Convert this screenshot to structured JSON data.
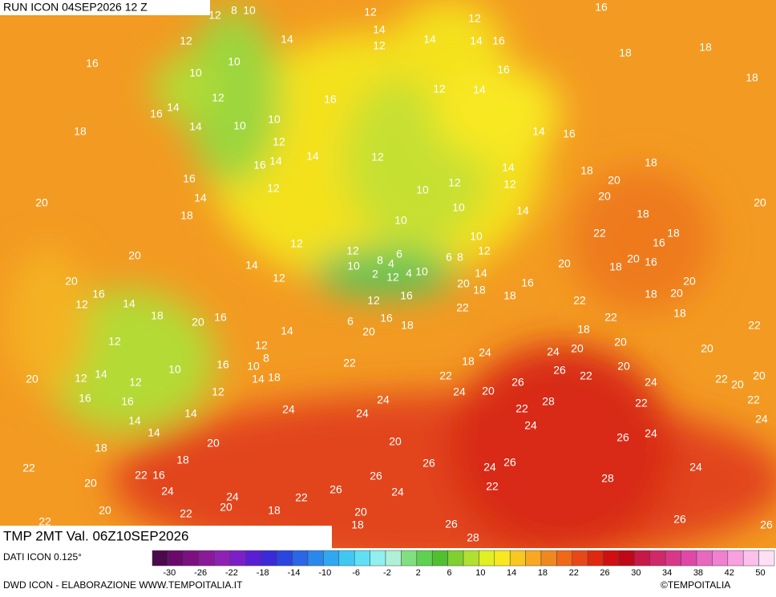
{
  "header": {
    "run": "RUN ICON 04SEP2026 12 Z",
    "field": "TMP 2MT Val. 06Z10SEP2026"
  },
  "map": {
    "labels": [
      8,
      10,
      12,
      12,
      12,
      16,
      14,
      14,
      12,
      14,
      14,
      16,
      12,
      10,
      10,
      16,
      18,
      18,
      18,
      16,
      12,
      14,
      12,
      14,
      16,
      16,
      18,
      14,
      10,
      10,
      12,
      14,
      16,
      16,
      14,
      14,
      12,
      18,
      18,
      20,
      14,
      16,
      12,
      10,
      12,
      12,
      20,
      20,
      14,
      18,
      10,
      14,
      18,
      20,
      10,
      18,
      22,
      10,
      16,
      20,
      12,
      12,
      6,
      8,
      4,
      12,
      14,
      10,
      6,
      8,
      2,
      12,
      4,
      10,
      20,
      20,
      16,
      18,
      20,
      12,
      20,
      14,
      16,
      20,
      16,
      12,
      14,
      12,
      16,
      18,
      18,
      22,
      18,
      20,
      18,
      20,
      16,
      6,
      16,
      18,
      22,
      20,
      14,
      22,
      18,
      22,
      18,
      12,
      12,
      8,
      20,
      20,
      24,
      24,
      20,
      22,
      18,
      16,
      10,
      18,
      14,
      10,
      14,
      12,
      12,
      20,
      20,
      22,
      26,
      22,
      26,
      24,
      22,
      20,
      20,
      24,
      20,
      16,
      16,
      12,
      28,
      22,
      22,
      22,
      24,
      24,
      24,
      14,
      14,
      24,
      24,
      14,
      24,
      26,
      20,
      20,
      18,
      18,
      26,
      26,
      24,
      24,
      22,
      22,
      16,
      26,
      28,
      20,
      22,
      24,
      26,
      24,
      24,
      22,
      20,
      18,
      20,
      20,
      22,
      26,
      22,
      18,
      26,
      26,
      28
    ],
    "source": "DATI ICON 0.125°",
    "credit": "DWD ICON - ELABORAZIONE WWW.TEMPOITALIA.IT",
    "copyright": "©TEMPOITALIA"
  },
  "colorbar": {
    "ticks": [
      -30,
      -26,
      -22,
      -18,
      -14,
      -10,
      -6,
      -2,
      2,
      6,
      10,
      14,
      18,
      22,
      26,
      30,
      34,
      38,
      42,
      50
    ]
  }
}
